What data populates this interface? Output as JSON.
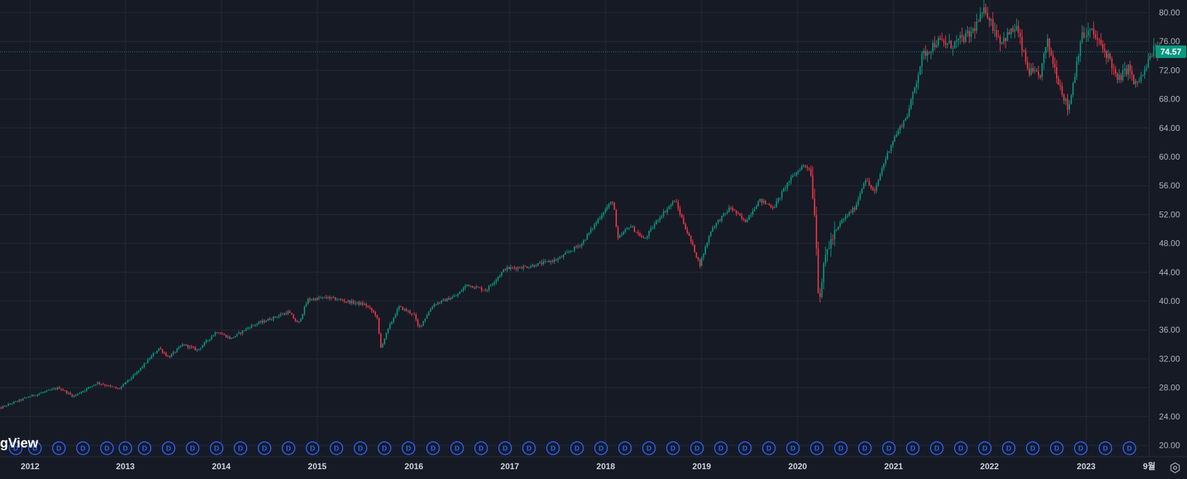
{
  "chart_data": {
    "type": "candlestick",
    "y_ticks": [
      "80.00",
      "76.00",
      "72.00",
      "68.00",
      "64.00",
      "60.00",
      "56.00",
      "52.00",
      "48.00",
      "44.00",
      "40.00",
      "36.00",
      "32.00",
      "28.00",
      "24.00",
      "20.00"
    ],
    "x_ticks": [
      "2012",
      "2013",
      "2014",
      "2015",
      "2016",
      "2017",
      "2018",
      "2019",
      "2020",
      "2021",
      "2022",
      "2023",
      "9월"
    ],
    "ylim": [
      18.8,
      81.2
    ],
    "xlim": [
      2011.62,
      2023.82
    ],
    "last_price": "74.57",
    "last_price_value": 74.57,
    "watermark": "gView",
    "dividend_label": "D",
    "dividend_markers": [
      2011.85,
      2012.05,
      2012.3,
      2012.55,
      2012.8,
      2013.0,
      2013.2,
      2013.45,
      2013.7,
      2013.95,
      2014.2,
      2014.45,
      2014.7,
      2014.95,
      2015.2,
      2015.45,
      2015.7,
      2015.95,
      2016.2,
      2016.45,
      2016.7,
      2016.95,
      2017.2,
      2017.45,
      2017.7,
      2017.95,
      2018.2,
      2018.45,
      2018.7,
      2018.95,
      2019.2,
      2019.45,
      2019.7,
      2019.95,
      2020.2,
      2020.45,
      2020.7,
      2020.95,
      2021.2,
      2021.45,
      2021.7,
      2021.95,
      2022.2,
      2022.45,
      2022.7,
      2022.95,
      2023.2,
      2023.45
    ],
    "price_path": [
      [
        2011.66,
        25.0
      ],
      [
        2011.8,
        25.8
      ],
      [
        2012.0,
        26.8
      ],
      [
        2012.3,
        28.0
      ],
      [
        2012.45,
        26.8
      ],
      [
        2012.7,
        28.7
      ],
      [
        2012.92,
        27.8
      ],
      [
        2013.1,
        29.8
      ],
      [
        2013.35,
        33.5
      ],
      [
        2013.45,
        32.2
      ],
      [
        2013.6,
        34.0
      ],
      [
        2013.75,
        33.2
      ],
      [
        2013.95,
        35.8
      ],
      [
        2014.1,
        34.8
      ],
      [
        2014.3,
        36.5
      ],
      [
        2014.5,
        37.5
      ],
      [
        2014.7,
        38.5
      ],
      [
        2014.8,
        36.8
      ],
      [
        2014.9,
        40.2
      ],
      [
        2015.1,
        40.5
      ],
      [
        2015.3,
        40.0
      ],
      [
        2015.5,
        39.5
      ],
      [
        2015.62,
        38.0
      ],
      [
        2015.66,
        33.5
      ],
      [
        2015.75,
        36.5
      ],
      [
        2015.85,
        39.2
      ],
      [
        2016.0,
        38.2
      ],
      [
        2016.05,
        36.2
      ],
      [
        2016.2,
        39.5
      ],
      [
        2016.45,
        40.8
      ],
      [
        2016.55,
        42.3
      ],
      [
        2016.75,
        41.5
      ],
      [
        2016.95,
        44.5
      ],
      [
        2017.2,
        44.8
      ],
      [
        2017.5,
        45.8
      ],
      [
        2017.75,
        48.0
      ],
      [
        2017.98,
        52.5
      ],
      [
        2018.08,
        54.0
      ],
      [
        2018.12,
        48.5
      ],
      [
        2018.25,
        50.5
      ],
      [
        2018.4,
        48.5
      ],
      [
        2018.55,
        51.5
      ],
      [
        2018.72,
        54.0
      ],
      [
        2018.82,
        50.5
      ],
      [
        2018.9,
        47.8
      ],
      [
        2018.98,
        45.0
      ],
      [
        2019.1,
        50.0
      ],
      [
        2019.3,
        53.0
      ],
      [
        2019.45,
        51.0
      ],
      [
        2019.6,
        54.0
      ],
      [
        2019.75,
        53.0
      ],
      [
        2019.9,
        56.5
      ],
      [
        2020.05,
        58.8
      ],
      [
        2020.13,
        58.5
      ],
      [
        2020.18,
        52.0
      ],
      [
        2020.22,
        40.0
      ],
      [
        2020.3,
        47.0
      ],
      [
        2020.45,
        51.0
      ],
      [
        2020.6,
        53.0
      ],
      [
        2020.7,
        57.0
      ],
      [
        2020.8,
        55.0
      ],
      [
        2020.88,
        58.5
      ],
      [
        2020.98,
        62.0
      ],
      [
        2021.15,
        66.0
      ],
      [
        2021.3,
        74.0
      ],
      [
        2021.45,
        76.0
      ],
      [
        2021.6,
        75.5
      ],
      [
        2021.8,
        77.0
      ],
      [
        2021.96,
        80.5
      ],
      [
        2022.02,
        78.5
      ],
      [
        2022.12,
        76.0
      ],
      [
        2022.28,
        78.0
      ],
      [
        2022.4,
        72.0
      ],
      [
        2022.52,
        71.0
      ],
      [
        2022.6,
        76.0
      ],
      [
        2022.72,
        70.5
      ],
      [
        2022.82,
        66.5
      ],
      [
        2022.88,
        71.0
      ],
      [
        2022.95,
        76.5
      ],
      [
        2023.05,
        77.5
      ],
      [
        2023.15,
        75.5
      ],
      [
        2023.25,
        73.5
      ],
      [
        2023.32,
        70.5
      ],
      [
        2023.45,
        72.5
      ],
      [
        2023.5,
        69.8
      ],
      [
        2023.6,
        71.5
      ],
      [
        2023.7,
        75.0
      ],
      [
        2023.78,
        74.6
      ]
    ]
  }
}
